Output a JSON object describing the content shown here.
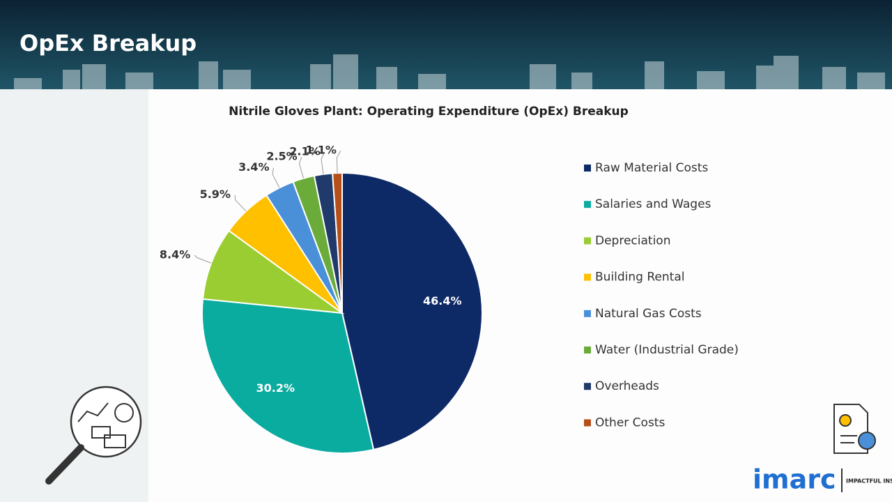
{
  "header": {
    "title": "OpEx Breakup"
  },
  "chart_data": {
    "type": "pie",
    "title": "Nitrile Gloves Plant: Operating Expenditure (OpEx) Breakup",
    "categories": [
      "Raw Material Costs",
      "Salaries and Wages",
      "Depreciation",
      "Building Rental",
      "Natural Gas Costs",
      "Water (Industrial Grade)",
      "Overheads",
      "Other Costs"
    ],
    "values": [
      46.4,
      30.2,
      8.4,
      5.9,
      3.4,
      2.5,
      2.1,
      1.1
    ],
    "value_labels": [
      "46.4%",
      "30.2%",
      "8.4%",
      "5.9%",
      "3.4%",
      "2.5%",
      "2.1%",
      "1.1%"
    ],
    "colors": [
      "#0e2a66",
      "#0aaca0",
      "#9acd32",
      "#ffc000",
      "#4a90d9",
      "#6aab3a",
      "#1f3a6b",
      "#b5501b"
    ],
    "legend": "right"
  },
  "logo": {
    "name": "imarc",
    "tagline": "IMPACTFUL INSIGHTS"
  }
}
